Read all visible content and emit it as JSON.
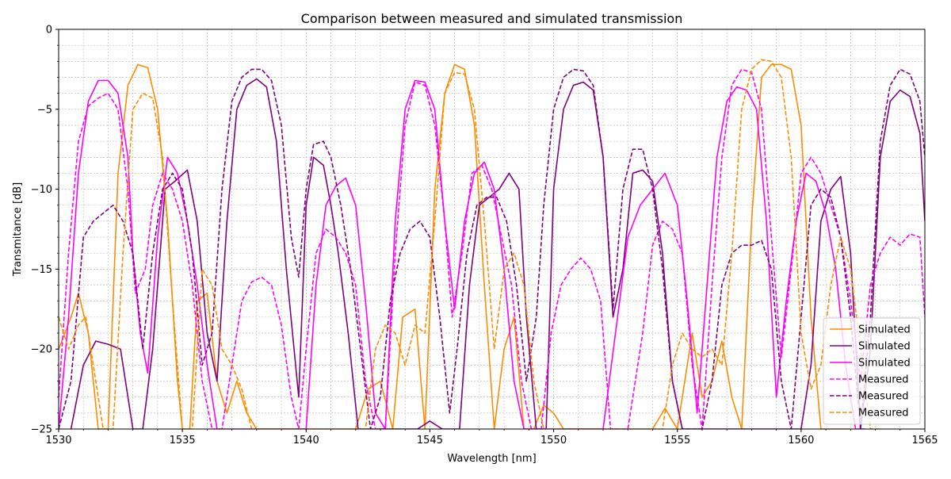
{
  "chart_data": {
    "type": "line",
    "title": "Comparison between measured and simulated transmission",
    "xlabel": "Wavelength [nm]",
    "ylabel": "Transmitance [dB]",
    "xlim": [
      1530,
      1565
    ],
    "ylim": [
      -25,
      0
    ],
    "xticks": [
      1530,
      1535,
      1540,
      1545,
      1550,
      1555,
      1560,
      1565
    ],
    "yticks": [
      0,
      -5,
      -10,
      -15,
      -20,
      -25
    ],
    "grid": true,
    "legend_position": "bottom-right",
    "series": [
      {
        "name": "Simulated",
        "color": "#ff8c00",
        "style": "solid",
        "x": [
          1530.0,
          1530.5,
          1530.8,
          1531.2,
          1531.6,
          1532.0,
          1532.4,
          1532.8,
          1533.2,
          1533.6,
          1534.0,
          1534.4,
          1534.8,
          1535.0,
          1535.3,
          1535.6,
          1536.0,
          1536.4,
          1536.8,
          1537.2,
          1537.6,
          1538.0,
          1542.0,
          1542.5,
          1543.0,
          1543.5,
          1543.9,
          1544.4,
          1544.8,
          1545.2,
          1545.6,
          1546.0,
          1546.4,
          1546.8,
          1547.2,
          1547.6,
          1548.0,
          1548.4,
          1548.8,
          1549.2,
          1549.6,
          1550.0,
          1550.4,
          1554.0,
          1554.5,
          1555.0,
          1555.6,
          1556.0,
          1556.4,
          1556.8,
          1557.2,
          1557.6,
          1558.0,
          1558.4,
          1558.8,
          1559.2,
          1559.6,
          1560.0,
          1560.4,
          1560.8,
          1561.2,
          1561.6,
          1562.0
        ],
        "y": [
          -20,
          -18,
          -16.5,
          -19,
          -25,
          -25,
          -9,
          -3.5,
          -2.2,
          -2.4,
          -5,
          -12,
          -22,
          -25,
          -25,
          -17,
          -16.5,
          -22,
          -24,
          -22,
          -24,
          -25,
          -25,
          -22.5,
          -22,
          -25,
          -18,
          -17.5,
          -25,
          -10,
          -4,
          -2.2,
          -2.5,
          -6,
          -16,
          -25,
          -20,
          -18,
          -25,
          -25,
          -23.5,
          -24,
          -25,
          -25,
          -23.7,
          -25,
          -19,
          -23,
          -22,
          -19.5,
          -23,
          -25,
          -12,
          -3,
          -2.2,
          -2.2,
          -2.5,
          -6,
          -18,
          -25,
          -25,
          -25,
          -25
        ]
      },
      {
        "name": "Simulated",
        "color": "#800080",
        "style": "solid",
        "x": [
          1530.5,
          1531.0,
          1531.5,
          1532.0,
          1532.5,
          1533.0,
          1533.4,
          1533.8,
          1534.3,
          1534.7,
          1535.2,
          1535.6,
          1536.0,
          1536.4,
          1536.8,
          1537.2,
          1537.6,
          1538.0,
          1538.4,
          1538.8,
          1539.2,
          1539.7,
          1540.0,
          1540.3,
          1540.7,
          1541.0,
          1541.3,
          1541.7,
          1542.1,
          1542.5,
          1543.0,
          1543.5,
          1544.0,
          1544.5,
          1545.0,
          1545.5,
          1545.9,
          1546.2,
          1546.6,
          1547.0,
          1547.4,
          1547.8,
          1548.2,
          1548.6,
          1548.9,
          1549.3,
          1549.7,
          1550.0,
          1550.4,
          1550.8,
          1551.2,
          1551.6,
          1552.0,
          1552.4,
          1552.8,
          1553.2,
          1553.6,
          1554.0,
          1554.4,
          1554.8,
          1555.2,
          1555.6,
          1556.0,
          1556.4,
          1556.8,
          1557.2,
          1557.6,
          1558.0,
          1558.4,
          1558.8,
          1559.2,
          1559.6,
          1560.0,
          1560.4,
          1560.8,
          1561.2,
          1561.6,
          1562.0,
          1562.4,
          1562.8,
          1563.2,
          1563.6,
          1564.0,
          1564.4,
          1564.8,
          1565.0
        ],
        "y": [
          -25,
          -21,
          -19.5,
          -19.7,
          -20,
          -25,
          -25,
          -20,
          -10,
          -9.5,
          -8.8,
          -12,
          -19,
          -22,
          -12,
          -5,
          -3.5,
          -3.1,
          -3.6,
          -7,
          -15,
          -23,
          -11,
          -8,
          -8.5,
          -11,
          -14,
          -19,
          -25,
          -25,
          -25,
          -25,
          -25,
          -25,
          -24.5,
          -25,
          -25,
          -25,
          -16,
          -11,
          -10.5,
          -10,
          -9,
          -10,
          -18,
          -25,
          -25,
          -10,
          -5,
          -3.5,
          -3.3,
          -3.8,
          -8,
          -18,
          -15,
          -9,
          -8.8,
          -9.5,
          -14,
          -22,
          -25,
          -25,
          -25,
          -25,
          -25,
          -25,
          -25,
          -25,
          -25,
          -25,
          -25,
          -25,
          -25,
          -21,
          -12,
          -10,
          -9.2,
          -14,
          -25,
          -20,
          -8,
          -4.5,
          -3.8,
          -4.2,
          -6.5,
          -12
        ]
      },
      {
        "name": "Simulated",
        "color": "#ff00ff",
        "style": "solid",
        "x": [
          1530.0,
          1530.4,
          1530.8,
          1531.2,
          1531.6,
          1532.0,
          1532.4,
          1532.8,
          1533.0,
          1533.3,
          1533.6,
          1534.0,
          1534.4,
          1534.8,
          1535.2,
          1535.6,
          1536.0,
          1536.4,
          1536.8,
          1540.0,
          1540.4,
          1540.8,
          1541.2,
          1541.6,
          1542.0,
          1542.4,
          1542.8,
          1543.2,
          1543.6,
          1544.0,
          1544.4,
          1544.8,
          1545.2,
          1545.6,
          1546.0,
          1546.4,
          1546.8,
          1547.2,
          1547.6,
          1548.0,
          1548.4,
          1548.8,
          1549.2,
          1552.0,
          1552.5,
          1553.0,
          1553.5,
          1554.0,
          1554.5,
          1555.0,
          1555.4,
          1555.8,
          1556.2,
          1556.6,
          1557.0,
          1557.4,
          1557.8,
          1558.2,
          1558.6,
          1559.0,
          1559.4,
          1559.8,
          1560.2,
          1560.6,
          1561.0,
          1561.4,
          1561.8,
          1562.2,
          1562.6
        ],
        "y": [
          -25,
          -18,
          -9,
          -4.5,
          -3.2,
          -3.2,
          -4,
          -8,
          -14,
          -19,
          -21.5,
          -13,
          -8,
          -9,
          -12,
          -16,
          -21,
          -25,
          -25,
          -25,
          -16,
          -11,
          -9.8,
          -9.3,
          -11,
          -17,
          -24,
          -25,
          -12,
          -5,
          -3.2,
          -3.3,
          -5,
          -12,
          -17.5,
          -12,
          -9,
          -8.3,
          -10,
          -15,
          -22,
          -25,
          -25,
          -25,
          -19,
          -13,
          -11,
          -10,
          -9,
          -11,
          -17,
          -24,
          -16,
          -8,
          -4.5,
          -3.6,
          -3.8,
          -5,
          -12,
          -23,
          -17,
          -12,
          -9,
          -9.5,
          -11.5,
          -15,
          -21,
          -25,
          -25
        ]
      },
      {
        "name": "Measured",
        "color": "#ff00ff",
        "style": "dashed",
        "x": [
          1530.0,
          1530.4,
          1530.8,
          1531.2,
          1531.6,
          1532.0,
          1532.4,
          1532.8,
          1533.1,
          1533.5,
          1533.8,
          1534.2,
          1534.6,
          1535.0,
          1535.4,
          1535.8,
          1536.2,
          1536.6,
          1537.0,
          1537.4,
          1537.8,
          1538.2,
          1538.6,
          1539.0,
          1539.4,
          1539.7,
          1540.0,
          1540.4,
          1540.8,
          1541.2,
          1541.6,
          1542.0,
          1542.4,
          1542.8,
          1543.2,
          1543.6,
          1544.0,
          1544.4,
          1544.8,
          1545.2,
          1545.6,
          1545.9,
          1546.3,
          1546.7,
          1547.1,
          1547.5,
          1547.9,
          1548.3,
          1548.7,
          1549.1,
          1549.5,
          1549.9,
          1550.3,
          1550.7,
          1551.1,
          1551.5,
          1551.9,
          1552.3,
          1553.0,
          1553.6,
          1554.0,
          1554.4,
          1554.8,
          1555.2,
          1555.6,
          1556.0,
          1556.4,
          1556.8,
          1557.2,
          1557.6,
          1558.0,
          1558.4,
          1558.8,
          1559.2,
          1559.6,
          1560.0,
          1560.4,
          1560.8,
          1561.2,
          1561.6,
          1562.0,
          1562.4,
          1562.8,
          1563.2,
          1563.6,
          1564.0,
          1564.4,
          1564.8,
          1565.0
        ],
        "y": [
          -23,
          -14,
          -7,
          -4.8,
          -4.3,
          -4.0,
          -5,
          -10,
          -16.5,
          -15,
          -11,
          -9,
          -10,
          -12,
          -16,
          -22,
          -25,
          -25,
          -21,
          -17,
          -15.8,
          -15.5,
          -16,
          -18.5,
          -23,
          -25,
          -20,
          -14,
          -12.5,
          -13,
          -14,
          -16,
          -22,
          -25,
          -25,
          -14,
          -6,
          -3.3,
          -3.5,
          -6,
          -12,
          -18,
          -14,
          -9,
          -8.5,
          -10,
          -13,
          -16,
          -22,
          -25,
          -25,
          -19,
          -16,
          -15,
          -14.3,
          -15,
          -17,
          -25,
          -25,
          -19,
          -13.5,
          -12,
          -12.5,
          -14,
          -21,
          -25,
          -16,
          -8,
          -3.5,
          -2.5,
          -2.7,
          -5,
          -13,
          -20.5,
          -15,
          -9,
          -8,
          -9,
          -11,
          -13,
          -17,
          -22,
          -16,
          -14,
          -13,
          -13.5,
          -12.8,
          -13,
          -18
        ]
      },
      {
        "name": "Measured",
        "color": "#800080",
        "style": "dashed",
        "x": [
          1530.0,
          1530.5,
          1531.0,
          1531.4,
          1531.8,
          1532.2,
          1532.6,
          1533.0,
          1533.4,
          1533.8,
          1534.2,
          1534.6,
          1535.0,
          1535.4,
          1535.8,
          1536.2,
          1536.6,
          1537.0,
          1537.4,
          1537.8,
          1538.2,
          1538.6,
          1539.0,
          1539.4,
          1539.7,
          1540.0,
          1540.3,
          1540.7,
          1541.0,
          1541.4,
          1541.8,
          1542.2,
          1542.6,
          1543.0,
          1543.4,
          1543.8,
          1544.2,
          1544.6,
          1545.0,
          1545.4,
          1545.8,
          1546.1,
          1546.5,
          1546.9,
          1547.3,
          1547.7,
          1548.1,
          1548.5,
          1548.9,
          1549.3,
          1549.6,
          1550.0,
          1550.4,
          1550.8,
          1551.2,
          1551.6,
          1552.0,
          1552.4,
          1552.8,
          1553.2,
          1553.6,
          1554.0,
          1554.4,
          1554.8,
          1555.2,
          1556.0,
          1556.4,
          1556.8,
          1557.2,
          1557.6,
          1558.0,
          1558.4,
          1558.8,
          1559.2,
          1559.6,
          1560.0,
          1560.4,
          1560.8,
          1561.2,
          1561.6,
          1562.0,
          1562.4,
          1562.8,
          1563.2,
          1563.6,
          1564.0,
          1564.4,
          1564.8,
          1565.0
        ],
        "y": [
          -25,
          -22,
          -13,
          -12,
          -11.5,
          -11,
          -12,
          -14,
          -20,
          -14,
          -10,
          -9,
          -10,
          -14,
          -21,
          -19,
          -10,
          -4.5,
          -3,
          -2.5,
          -2.5,
          -3.2,
          -6,
          -13,
          -15.5,
          -10,
          -7.2,
          -7,
          -8,
          -11,
          -15,
          -20,
          -25,
          -23,
          -17,
          -14,
          -12.5,
          -12,
          -13,
          -18,
          -24,
          -20,
          -14,
          -11,
          -10.5,
          -10.5,
          -12,
          -16,
          -22,
          -18,
          -11,
          -5,
          -3,
          -2.5,
          -2.6,
          -3.5,
          -8,
          -17.5,
          -10,
          -7.5,
          -7.5,
          -10,
          -15,
          -22,
          -25,
          -25,
          -22,
          -16,
          -14,
          -13.5,
          -13.5,
          -13.2,
          -15,
          -22,
          -25,
          -18,
          -11,
          -10,
          -10.5,
          -13,
          -18,
          -25,
          -18,
          -7,
          -3.5,
          -2.5,
          -2.8,
          -4.5,
          -8
        ]
      },
      {
        "name": "Measured",
        "color": "#ff8c00",
        "style": "dashed",
        "x": [
          1530.0,
          1530.4,
          1530.8,
          1531.1,
          1531.4,
          1531.8,
          1532.2,
          1532.6,
          1533.0,
          1533.4,
          1533.8,
          1534.2,
          1534.6,
          1535.0,
          1535.4,
          1535.8,
          1536.2,
          1536.6,
          1537.0,
          1537.4,
          1537.8,
          1542.4,
          1542.8,
          1543.2,
          1543.6,
          1544.0,
          1544.4,
          1544.8,
          1545.2,
          1545.6,
          1546.0,
          1546.4,
          1546.8,
          1547.2,
          1547.6,
          1548.0,
          1548.4,
          1548.8,
          1549.2,
          1549.6,
          1554.4,
          1554.8,
          1555.2,
          1555.6,
          1556.0,
          1556.4,
          1556.8,
          1557.2,
          1557.6,
          1558.0,
          1558.4,
          1558.8,
          1559.2,
          1559.6,
          1560.0,
          1560.4,
          1560.8,
          1561.2,
          1561.6,
          1562.0,
          1562.4,
          1562.8,
          1563.2
        ],
        "y": [
          -18,
          -20,
          -18.5,
          -18,
          -21,
          -25,
          -25,
          -14,
          -5,
          -4,
          -4.3,
          -8,
          -17,
          -25,
          -25,
          -15,
          -16,
          -20,
          -21,
          -22.5,
          -25,
          -25,
          -20,
          -18.5,
          -19,
          -21,
          -18.5,
          -19,
          -12,
          -4,
          -2.7,
          -2.8,
          -5,
          -12,
          -20,
          -15,
          -14,
          -16,
          -22,
          -25,
          -25,
          -21,
          -19,
          -20,
          -20.5,
          -20,
          -21,
          -14,
          -5,
          -2.5,
          -1.9,
          -2,
          -3,
          -8,
          -19,
          -22.5,
          -21,
          -16,
          -13,
          -15,
          -20,
          -25,
          -25
        ]
      }
    ]
  }
}
